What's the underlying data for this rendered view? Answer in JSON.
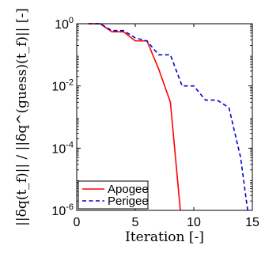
{
  "chart_data": {
    "type": "line",
    "xlabel": "Iteration [-]",
    "ylabel": "||δq(t_f)|| / ||δq^(guess)(t_f)|| [-]",
    "xlim": [
      0,
      15
    ],
    "ylim": [
      1e-06,
      1
    ],
    "yscale": "log",
    "xticks": [
      0,
      5,
      10,
      15
    ],
    "xtick_labels": [
      "0",
      "5",
      "10",
      "15"
    ],
    "yticks": [
      1e-06,
      0.0001,
      0.01,
      1
    ],
    "ytick_labels": [
      {
        "base": "10",
        "exp": "-6"
      },
      {
        "base": "10",
        "exp": "-4"
      },
      {
        "base": "10",
        "exp": "-2"
      },
      {
        "base": "10",
        "exp": "0"
      }
    ],
    "grid": false,
    "legend_position": "bottom-left",
    "series": [
      {
        "name": "Apogee",
        "color": "#ff0000",
        "style": "solid",
        "x": [
          1,
          2,
          3,
          4,
          5,
          6,
          7,
          8,
          8.85
        ],
        "y": [
          1.0,
          1.0,
          0.55,
          0.55,
          0.28,
          0.28,
          0.035,
          0.003,
          1e-06
        ]
      },
      {
        "name": "Perigee",
        "color": "#0000cc",
        "style": "dashed",
        "x": [
          1,
          2,
          3,
          4,
          5,
          6,
          7,
          8,
          9,
          10,
          11,
          12,
          13,
          14,
          14.6
        ],
        "y": [
          1.0,
          1.0,
          0.6,
          0.6,
          0.35,
          0.28,
          0.1,
          0.1,
          0.01,
          0.01,
          0.0035,
          0.0035,
          0.002,
          5e-05,
          1e-06
        ]
      }
    ]
  }
}
